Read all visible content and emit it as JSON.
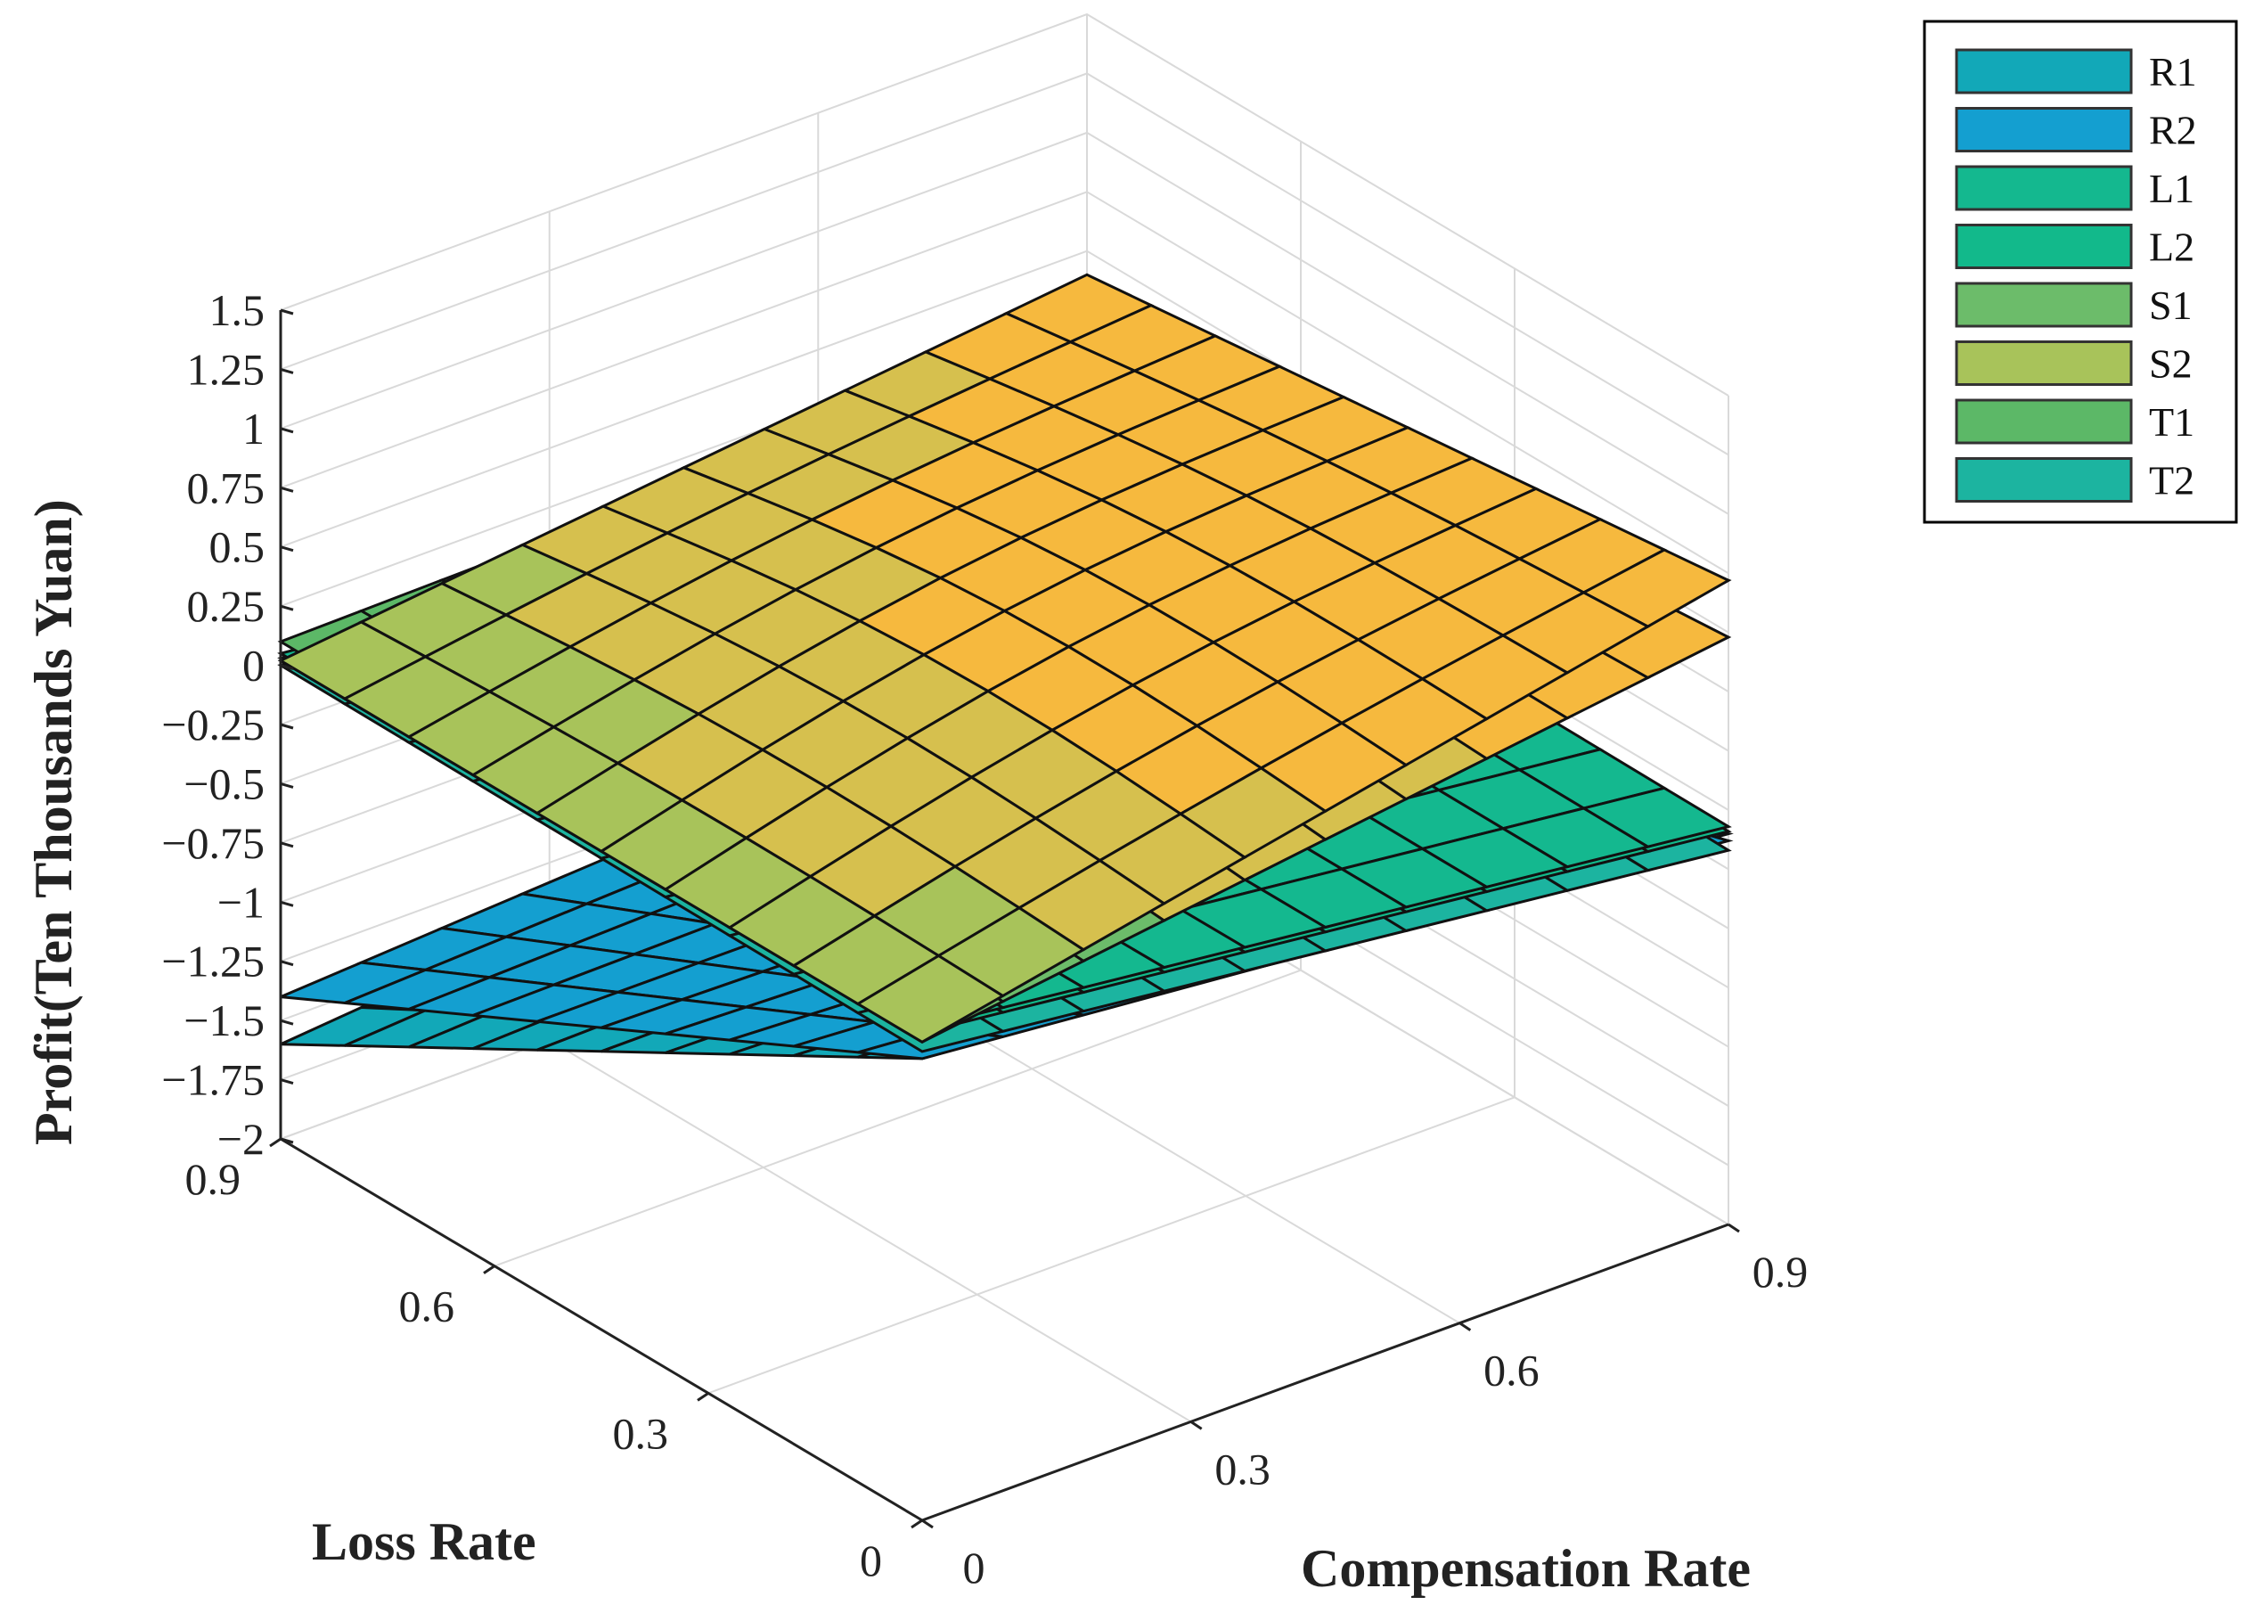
{
  "chart_data": {
    "type": "surface3d",
    "title": "",
    "xlabel": "Compensation Rate",
    "ylabel": "Loss Rate",
    "zlabel": "Profit(Ten Thousands Yuan)",
    "x_ticks": [
      "0",
      "0.3",
      "0.6",
      "0.9"
    ],
    "y_ticks": [
      "0",
      "0.3",
      "0.6",
      "0.9"
    ],
    "z_ticks": [
      "1.5",
      "1.25",
      "1",
      "0.75",
      "0.5",
      "0.25",
      "0",
      "−0.25",
      "−0.5",
      "−0.75",
      "−1",
      "−1.25",
      "−1.5",
      "−1.75",
      "−2"
    ],
    "xlim": [
      0,
      0.9
    ],
    "ylim": [
      0,
      0.9
    ],
    "zlim": [
      -2,
      1.5
    ],
    "grid": true,
    "legend_position": "top-right",
    "series": [
      {
        "name": "R1",
        "color": "#12a8b8",
        "corner_profits": {
          "x0_y0": -0.05,
          "x1_y0": -0.35,
          "x0_y1": -1.6,
          "x1_y1": -1.3
        }
      },
      {
        "name": "R2",
        "color": "#149fd0",
        "corner_profits": {
          "x0_y0": -0.05,
          "x1_y0": -0.38,
          "x0_y1": -1.4,
          "x1_y1": -1.2
        }
      },
      {
        "name": "L1",
        "color": "#14b88f",
        "corner_profits": {
          "x0_y0": 0.08,
          "x1_y0": -0.32,
          "x0_y1": 0.05,
          "x1_y1": -0.3
        }
      },
      {
        "name": "L2",
        "color": "#12b98b",
        "corner_profits": {
          "x0_y0": 0.06,
          "x1_y0": -0.34,
          "x0_y1": 0.03,
          "x1_y1": -0.32
        }
      },
      {
        "name": "S1",
        "color": "#6cbc6a",
        "corner_profits": {
          "x0_y0": 0.02,
          "x1_y0": 0.48,
          "x0_y1": 0.02,
          "x1_y1": 0.25
        }
      },
      {
        "name": "S2",
        "color": "#a8c35a",
        "corner_profits": {
          "x0_y0": 0.02,
          "x1_y0": 0.72,
          "x0_y1": 0.02,
          "x1_y1": 0.4
        }
      },
      {
        "name": "T1",
        "color": "#5cb867",
        "corner_profits": {
          "x0_y0": 0.1,
          "x1_y0": 0.72,
          "x0_y1": 0.1,
          "x1_y1": 0.15
        }
      },
      {
        "name": "T2",
        "color": "#1cb4a0",
        "corner_profits": {
          "x0_y0": -0.02,
          "x1_y0": -0.42,
          "x0_y1": 0.0,
          "x1_y1": -0.36
        }
      }
    ]
  }
}
